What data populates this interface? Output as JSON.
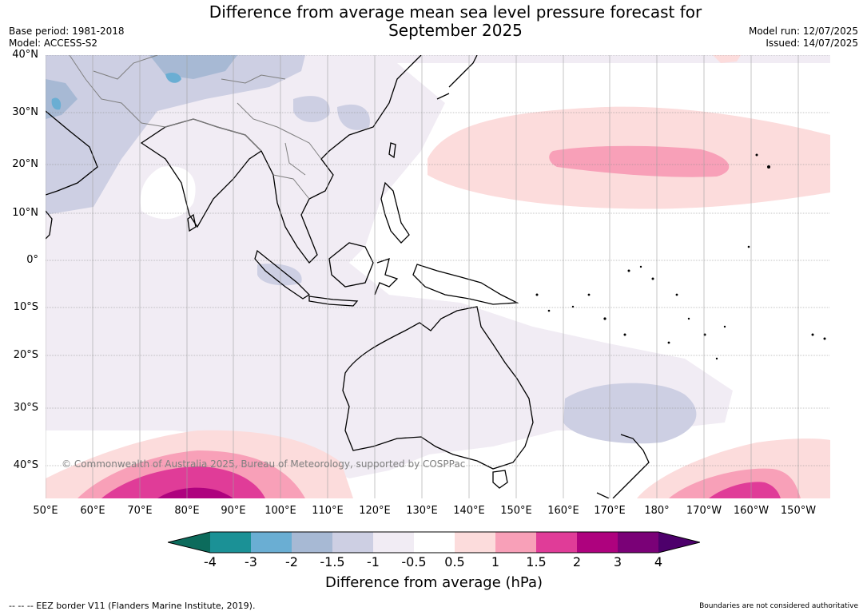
{
  "title_line1": "Difference from average mean sea level pressure forecast for",
  "title_line2": "September 2025",
  "meta": {
    "base_period": "Base period: 1981-2018",
    "model": "Model: ACCESS-S2",
    "model_run": "Model run: 12/07/2025",
    "issued": "Issued: 14/07/2025"
  },
  "lat_labels": [
    "40°N",
    "30°N",
    "20°N",
    "10°N",
    "0°",
    "10°S",
    "20°S",
    "30°S",
    "40°S"
  ],
  "lon_labels": [
    "50°E",
    "60°E",
    "70°E",
    "80°E",
    "90°E",
    "100°E",
    "110°E",
    "120°E",
    "130°E",
    "140°E",
    "150°E",
    "160°E",
    "170°E",
    "180°",
    "170°W",
    "160°W",
    "150°W"
  ],
  "copyright": "© Commonwealth of Australia 2025, Bureau of Meteorology, supported by COSPPac",
  "colorbar": {
    "label": "Difference from average (hPa)",
    "ticks": [
      "-4",
      "-3",
      "-2",
      "-1.5",
      "-1",
      "-0.5",
      "0.5",
      "1",
      "1.5",
      "2",
      "3",
      "4"
    ],
    "colors": {
      "below_min": "#0c6b5c",
      "n4_n3": "#1b9196",
      "n3_n2": "#6aaed3",
      "n2_n15": "#a7b9d4",
      "n15_n1": "#cdcfe3",
      "n1_n05": "#f1ecf4",
      "n05_05": "#ffffff",
      "p05_1": "#fcdcdc",
      "p1_15": "#f8a0b8",
      "p15_2": "#e03c98",
      "p2_3": "#ae027e",
      "p3_4": "#7a0177",
      "above_max": "#4d006b"
    }
  },
  "footer_left": "--  --  -- EEZ border V11 (Flanders Marine Institute, 2019).",
  "footer_right": "Boundaries are not considered authoritative"
}
